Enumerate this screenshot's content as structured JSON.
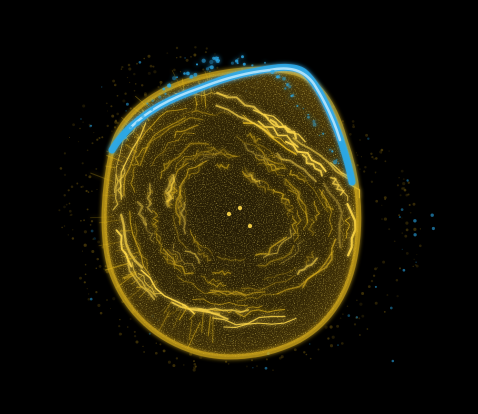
{
  "image": {
    "subject": "fluorescence-microscopy-cell",
    "background_color": "#000000",
    "colors": {
      "actin_yellow": "#e0b41c",
      "actin_bright": "#ffd94a",
      "actin_dim": "#6e560c",
      "membrane_blue": "#2aa9e8",
      "membrane_bright": "#bfeaff",
      "halo_dim": "#2a2208"
    }
  }
}
